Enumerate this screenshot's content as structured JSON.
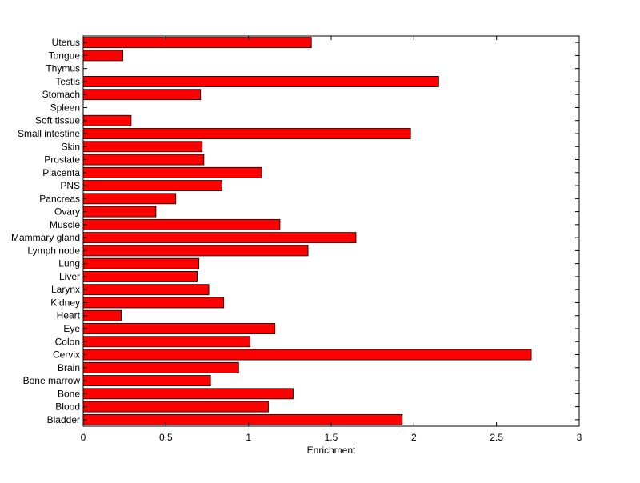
{
  "chart_data": {
    "type": "bar",
    "orientation": "horizontal",
    "title": "",
    "xlabel": "Enrichment",
    "ylabel": "",
    "xlim": [
      0,
      3
    ],
    "xticks": [
      "0",
      "0.5",
      "1",
      "1.5",
      "2",
      "2.5",
      "3"
    ],
    "grid": false,
    "bar_color": "#ff0000",
    "categories": [
      "Uterus",
      "Tongue",
      "Thymus",
      "Testis",
      "Stomach",
      "Spleen",
      "Soft tissue",
      "Small intestine",
      "Skin",
      "Prostate",
      "Placenta",
      "PNS",
      "Pancreas",
      "Ovary",
      "Muscle",
      "Mammary gland",
      "Lymph node",
      "Lung",
      "Liver",
      "Larynx",
      "Kidney",
      "Heart",
      "Eye",
      "Colon",
      "Cervix",
      "Brain",
      "Bone marrow",
      "Bone",
      "Blood",
      "Bladder"
    ],
    "values": [
      1.38,
      0.24,
      0,
      2.15,
      0.71,
      0,
      0.29,
      1.98,
      0.72,
      0.73,
      1.08,
      0.84,
      0.56,
      0.44,
      1.19,
      1.65,
      1.36,
      0.7,
      0.69,
      0.76,
      0.85,
      0.23,
      1.16,
      1.01,
      2.71,
      0.94,
      0.77,
      1.27,
      1.12,
      1.93
    ]
  }
}
